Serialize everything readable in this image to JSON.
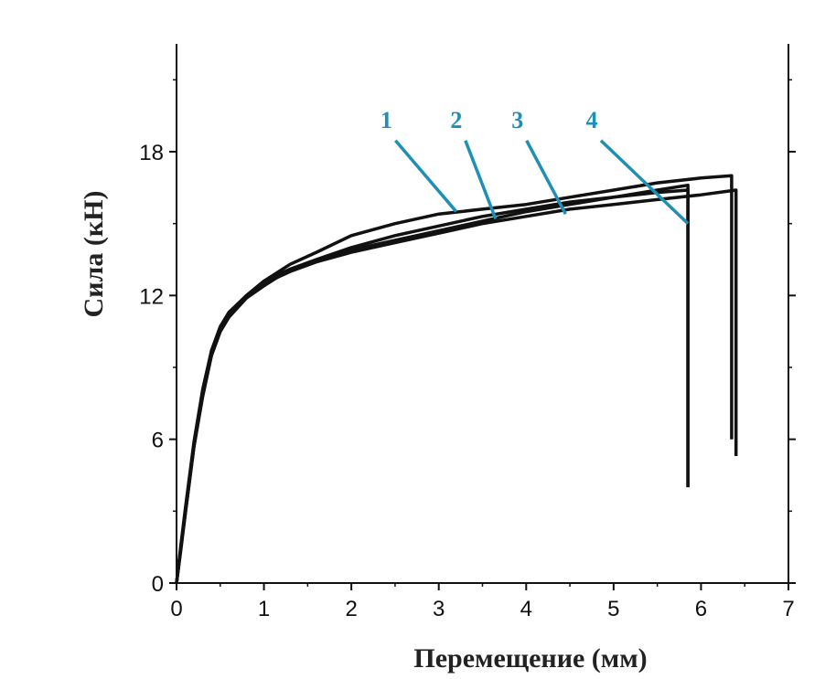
{
  "chart_data": {
    "type": "line",
    "xlabel": "Перемещение (мм)",
    "ylabel": "Сила (кН)",
    "xlim": [
      0,
      7
    ],
    "ylim": [
      0,
      22.5
    ],
    "xticks": [
      "0",
      "1",
      "2",
      "3",
      "4",
      "5",
      "6",
      "7"
    ],
    "yticks": [
      "0",
      "6",
      "12",
      "18"
    ],
    "grid": false,
    "line_color": "#111111",
    "label_color": "#1f8fb4",
    "series": [
      {
        "name": "1",
        "x": [
          0,
          0.05,
          0.1,
          0.2,
          0.3,
          0.4,
          0.5,
          0.6,
          0.8,
          1.0,
          1.3,
          1.6,
          2.0,
          2.5,
          3.0,
          3.5,
          4.0,
          4.5,
          5.0,
          5.5,
          6.0,
          6.35,
          6.35
        ],
        "y": [
          0,
          1.5,
          3.0,
          5.8,
          8.0,
          9.6,
          10.6,
          11.2,
          12.0,
          12.6,
          13.3,
          13.8,
          14.5,
          15.0,
          15.4,
          15.6,
          15.8,
          16.1,
          16.4,
          16.7,
          16.9,
          17.0,
          6.0
        ]
      },
      {
        "name": "2",
        "x": [
          0,
          0.05,
          0.1,
          0.2,
          0.3,
          0.4,
          0.5,
          0.6,
          0.8,
          1.0,
          1.3,
          1.6,
          2.0,
          2.5,
          3.0,
          3.5,
          4.0,
          4.5,
          5.0,
          5.5,
          5.85,
          5.85
        ],
        "y": [
          0,
          1.4,
          2.9,
          5.7,
          7.8,
          9.5,
          10.5,
          11.1,
          11.9,
          12.4,
          13.1,
          13.5,
          14.0,
          14.5,
          14.9,
          15.3,
          15.6,
          15.9,
          16.1,
          16.3,
          16.4,
          4.0
        ]
      },
      {
        "name": "3",
        "x": [
          0,
          0.05,
          0.1,
          0.2,
          0.3,
          0.4,
          0.5,
          0.6,
          0.8,
          1.0,
          1.3,
          1.6,
          2.0,
          2.5,
          3.0,
          3.5,
          4.0,
          4.5,
          5.0,
          5.5,
          6.0,
          6.4,
          6.4
        ],
        "y": [
          0,
          1.6,
          3.1,
          5.9,
          8.1,
          9.7,
          10.7,
          11.3,
          12.0,
          12.6,
          13.1,
          13.4,
          13.8,
          14.2,
          14.6,
          15.0,
          15.3,
          15.6,
          15.8,
          16.0,
          16.2,
          16.4,
          5.3
        ]
      },
      {
        "name": "4",
        "x": [
          0,
          0.05,
          0.1,
          0.2,
          0.3,
          0.4,
          0.5,
          0.6,
          0.8,
          1.0,
          1.3,
          1.6,
          2.0,
          2.5,
          3.0,
          3.5,
          4.0,
          4.5,
          5.0,
          5.5,
          5.85,
          5.85
        ],
        "y": [
          0,
          1.5,
          2.9,
          5.7,
          7.9,
          9.5,
          10.5,
          11.1,
          11.9,
          12.5,
          13.0,
          13.4,
          13.9,
          14.3,
          14.7,
          15.1,
          15.5,
          15.8,
          16.1,
          16.4,
          16.6,
          4.0
        ]
      }
    ],
    "annotations": [
      {
        "text": "1",
        "series": "1",
        "label_x": 2.4,
        "label_y": 19.0,
        "point_x": 3.2,
        "point_y": 15.5
      },
      {
        "text": "2",
        "series": "2",
        "label_x": 3.2,
        "label_y": 19.0,
        "point_x": 3.65,
        "point_y": 15.2
      },
      {
        "text": "3",
        "series": "3",
        "label_x": 3.9,
        "label_y": 19.0,
        "point_x": 4.45,
        "point_y": 15.4
      },
      {
        "text": "4",
        "series": "4",
        "label_x": 4.75,
        "label_y": 19.0,
        "point_x": 5.85,
        "point_y": 15.0
      }
    ]
  }
}
